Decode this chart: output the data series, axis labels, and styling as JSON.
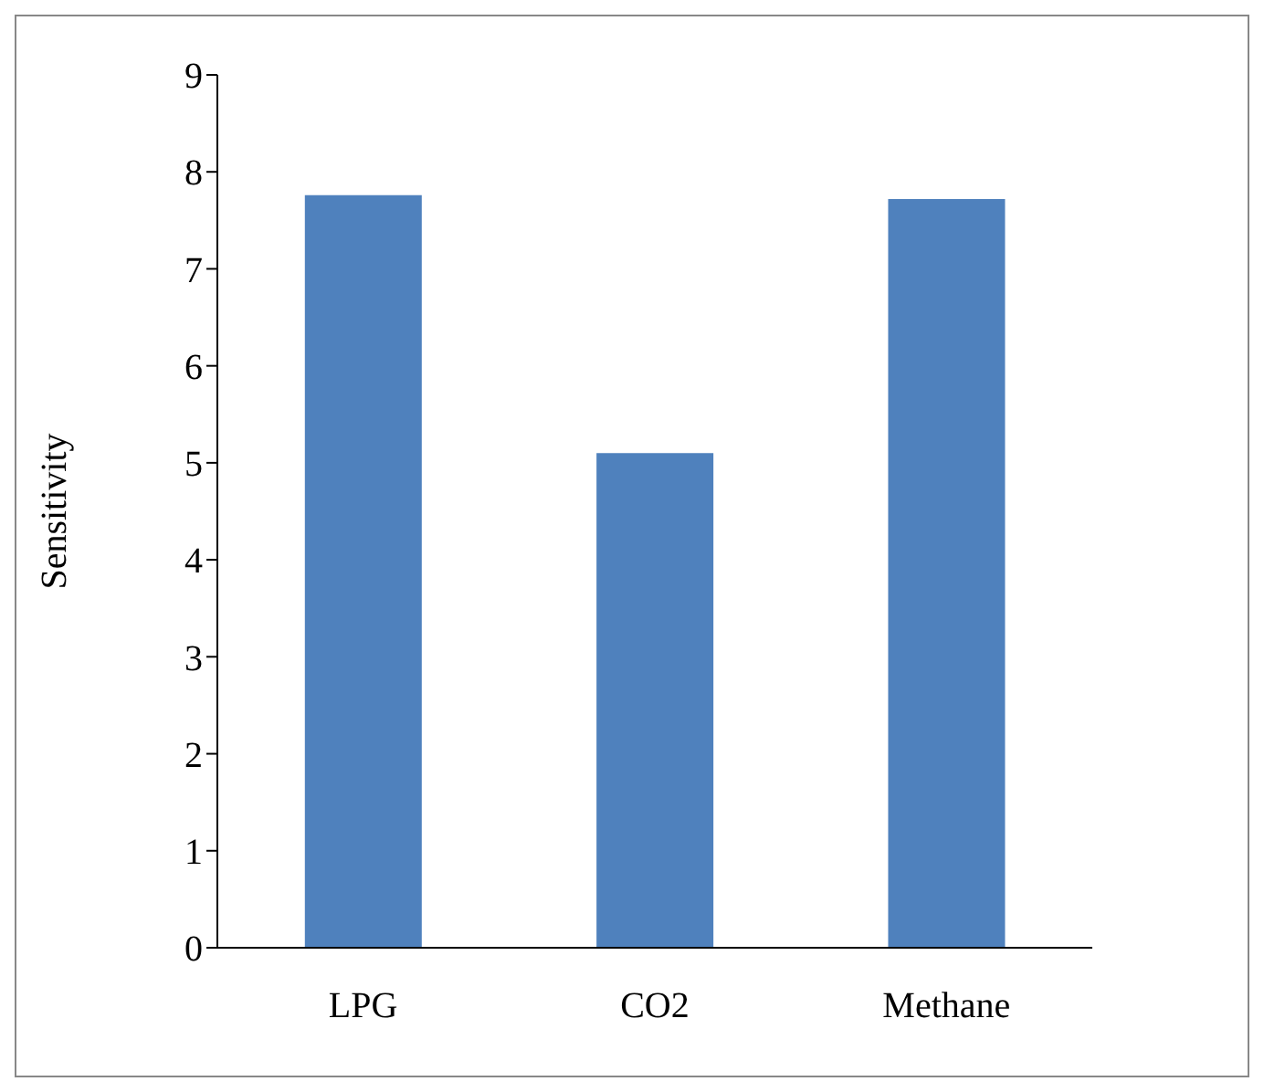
{
  "chart_data": {
    "type": "bar",
    "ylabel": "Sensitivity",
    "categories": [
      "LPG",
      "CO2",
      "Methane"
    ],
    "values": [
      7.76,
      5.1,
      7.72
    ],
    "color": "#4f81bd",
    "ylim": [
      0,
      9
    ],
    "yticks": [
      0,
      1,
      2,
      3,
      4,
      5,
      6,
      7,
      8,
      9
    ],
    "grid": false,
    "legend": false
  }
}
